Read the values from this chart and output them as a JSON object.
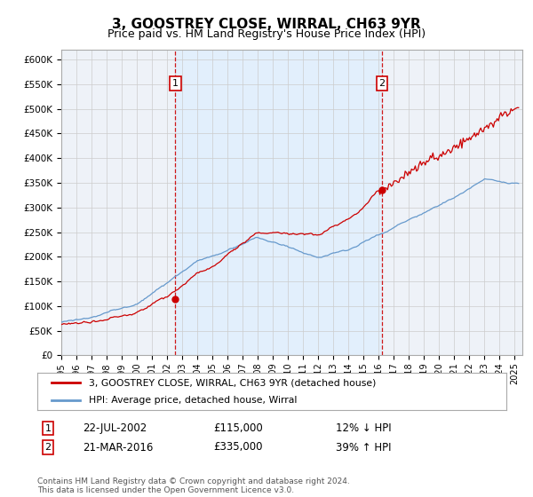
{
  "title": "3, GOOSTREY CLOSE, WIRRAL, CH63 9YR",
  "subtitle": "Price paid vs. HM Land Registry's House Price Index (HPI)",
  "ylim": [
    0,
    620000
  ],
  "xlim_start": 1995.0,
  "xlim_end": 2025.5,
  "yticks": [
    0,
    50000,
    100000,
    150000,
    200000,
    250000,
    300000,
    350000,
    400000,
    450000,
    500000,
    550000,
    600000
  ],
  "ytick_labels": [
    "£0",
    "£50K",
    "£100K",
    "£150K",
    "£200K",
    "£250K",
    "£300K",
    "£350K",
    "£400K",
    "£450K",
    "£500K",
    "£550K",
    "£600K"
  ],
  "xtick_years": [
    1995,
    1996,
    1997,
    1998,
    1999,
    2000,
    2001,
    2002,
    2003,
    2004,
    2005,
    2006,
    2007,
    2008,
    2009,
    2010,
    2011,
    2012,
    2013,
    2014,
    2015,
    2016,
    2017,
    2018,
    2019,
    2020,
    2021,
    2022,
    2023,
    2024,
    2025
  ],
  "transaction1_x": 2002.55,
  "transaction1_y": 115000,
  "transaction1_label": "1",
  "transaction1_date": "22-JUL-2002",
  "transaction1_price": "£115,000",
  "transaction1_hpi": "12% ↓ HPI",
  "transaction2_x": 2016.22,
  "transaction2_y": 335000,
  "transaction2_label": "2",
  "transaction2_date": "21-MAR-2016",
  "transaction2_price": "£335,000",
  "transaction2_hpi": "39% ↑ HPI",
  "line1_color": "#cc0000",
  "line2_color": "#6699cc",
  "shade_color": "#ddeeff",
  "plot_bg": "#eef2f8",
  "grid_color": "#cccccc",
  "legend1": "3, GOOSTREY CLOSE, WIRRAL, CH63 9YR (detached house)",
  "legend2": "HPI: Average price, detached house, Wirral",
  "footer": "Contains HM Land Registry data © Crown copyright and database right 2024.\nThis data is licensed under the Open Government Licence v3.0."
}
